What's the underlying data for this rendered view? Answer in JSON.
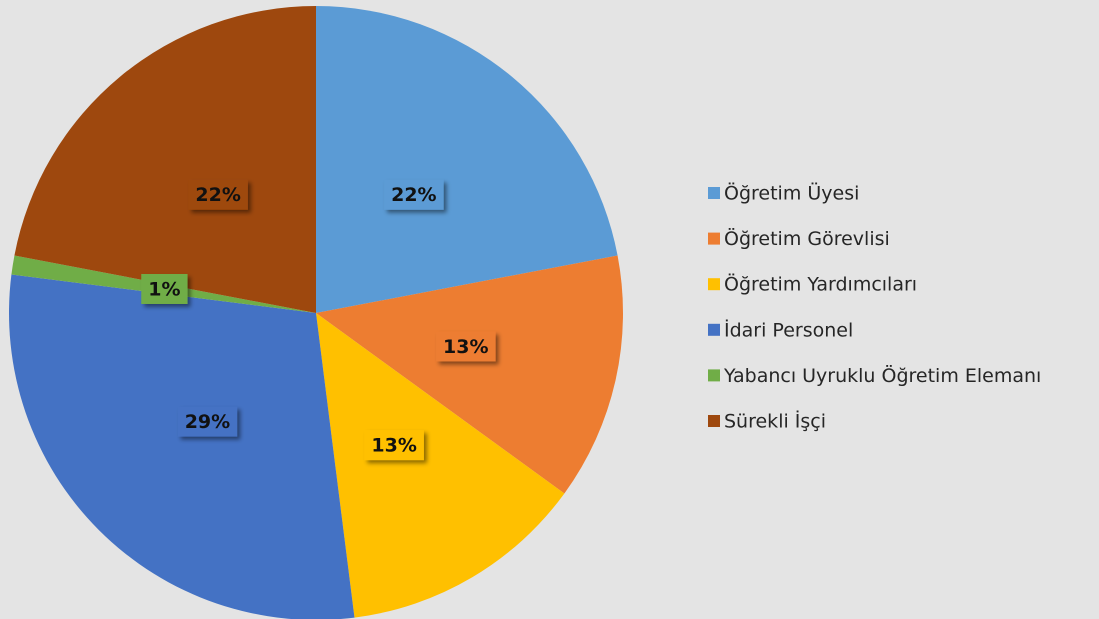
{
  "chart_data": {
    "type": "pie",
    "categories": [
      "Öğretim Üyesi",
      "Öğretim Görevlisi",
      "Öğretim Yardımcıları",
      "İdari Personel",
      "Yabancı Uyruklu Öğretim Elemanı",
      "Sürekli İşçi"
    ],
    "values": [
      22,
      13,
      13,
      29,
      1,
      22
    ],
    "value_labels": [
      "22%",
      "13%",
      "13%",
      "29%",
      "1%",
      "22%"
    ],
    "colors": [
      "#5b9bd5",
      "#ed7d31",
      "#ffc000",
      "#4472c4",
      "#70ad47",
      "#9e480e"
    ],
    "legend": "right"
  }
}
